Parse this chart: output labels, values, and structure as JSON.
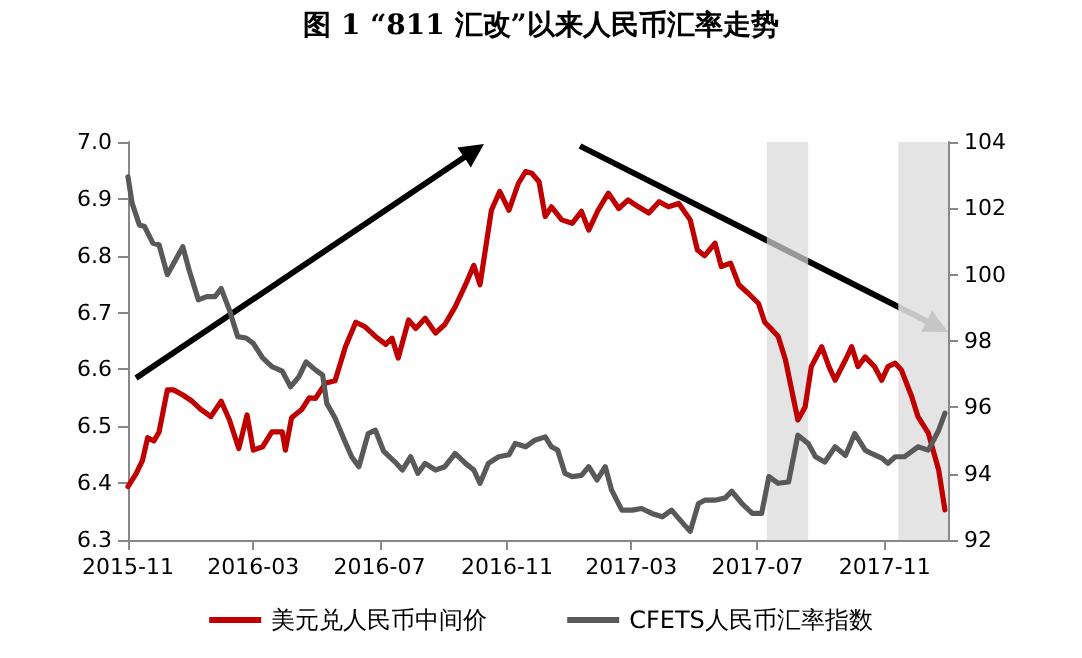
{
  "chart_data": {
    "type": "line",
    "title": "图 1 “811 汇改”以来人民币汇率走势",
    "xlim": [
      "2015-11",
      "2018-01"
    ],
    "xticks": [
      "2015-11",
      "2016-03",
      "2016-07",
      "2016-11",
      "2017-03",
      "2017-07",
      "2017-11"
    ],
    "ylim": [
      6.3,
      7.0
    ],
    "yticks": [
      6.3,
      6.4,
      6.5,
      6.6,
      6.7,
      6.8,
      6.9,
      {
        "value": 7,
        "label": "7.0"
      }
    ],
    "y2lim": [
      92,
      104
    ],
    "y2ticks": [
      92,
      94,
      96,
      98,
      100,
      102,
      104
    ],
    "grid": false,
    "legend": "bottom",
    "marker": "none",
    "line_style": "solid",
    "bands": [
      {
        "axis": "x",
        "from": "2017-07-10",
        "to": "2017-08-19",
        "color": "#d9d9d9"
      },
      {
        "axis": "x",
        "from": "2017-11-14",
        "to": "2018-01-01",
        "color": "#d9d9d9"
      }
    ],
    "series": [
      {
        "name": "美元兑人民币中间价",
        "color": "#c00000",
        "x": [
          "2015-11-01",
          "2015-11-09",
          "2015-11-15",
          "2015-11-20",
          "2015-11-26",
          "2015-12-01",
          "2015-12-09",
          "2015-12-15",
          "2015-12-24",
          "2016-01-02",
          "2016-01-10",
          "2016-01-20",
          "2016-01-30",
          "2016-02-07",
          "2016-02-16",
          "2016-02-24",
          "2016-03-01",
          "2016-03-10",
          "2016-03-19",
          "2016-03-29",
          "2016-04-01",
          "2016-04-07",
          "2016-04-17",
          "2016-04-24",
          "2016-04-30",
          "2016-05-10",
          "2016-05-19",
          "2016-05-29",
          "2016-06-08",
          "2016-06-17",
          "2016-06-27",
          "2016-07-07",
          "2016-07-13",
          "2016-07-19",
          "2016-07-29",
          "2016-08-05",
          "2016-08-14",
          "2016-08-24",
          "2016-09-02",
          "2016-09-12",
          "2016-09-22",
          "2016-09-30",
          "2016-10-06",
          "2016-10-17",
          "2016-10-25",
          "2016-11-03",
          "2016-11-12",
          "2016-11-19",
          "2016-11-25",
          "2016-12-02",
          "2016-12-08",
          "2016-12-14",
          "2016-12-24",
          "2017-01-03",
          "2017-01-12",
          "2017-01-19",
          "2017-01-28",
          "2017-02-07",
          "2017-02-17",
          "2017-02-26",
          "2017-03-08",
          "2017-03-18",
          "2017-03-28",
          "2017-04-06",
          "2017-04-16",
          "2017-04-27",
          "2017-05-04",
          "2017-05-11",
          "2017-05-21",
          "2017-05-27",
          "2017-06-05",
          "2017-06-13",
          "2017-06-22",
          "2017-07-02",
          "2017-07-08",
          "2017-07-15",
          "2017-07-21",
          "2017-07-28",
          "2017-08-03",
          "2017-08-09",
          "2017-08-16",
          "2017-08-22",
          "2017-09-01",
          "2017-09-08",
          "2017-09-14",
          "2017-09-24",
          "2017-09-30",
          "2017-10-06",
          "2017-10-13",
          "2017-10-22",
          "2017-10-29",
          "2017-11-04",
          "2017-11-11",
          "2017-11-17",
          "2017-11-27",
          "2017-12-03",
          "2017-12-13",
          "2017-12-23",
          "2017-12-29"
        ],
        "values": [
          6.394,
          6.417,
          6.44,
          6.48,
          6.474,
          6.49,
          6.564,
          6.564,
          6.555,
          6.544,
          6.53,
          6.517,
          6.544,
          6.511,
          6.461,
          6.52,
          6.458,
          6.464,
          6.49,
          6.49,
          6.458,
          6.515,
          6.53,
          6.55,
          6.549,
          6.576,
          6.58,
          6.64,
          6.683,
          6.675,
          6.658,
          6.644,
          6.655,
          6.62,
          6.687,
          6.672,
          6.69,
          6.664,
          6.679,
          6.71,
          6.749,
          6.783,
          6.749,
          6.88,
          6.913,
          6.88,
          6.927,
          6.948,
          6.945,
          6.93,
          6.869,
          6.886,
          6.863,
          6.857,
          6.878,
          6.845,
          6.88,
          6.91,
          6.883,
          6.898,
          6.886,
          6.875,
          6.895,
          6.886,
          6.892,
          6.863,
          6.81,
          6.8,
          6.822,
          6.781,
          6.787,
          6.749,
          6.734,
          6.716,
          6.683,
          6.67,
          6.658,
          6.617,
          6.564,
          6.511,
          6.534,
          6.605,
          6.64,
          6.605,
          6.581,
          6.617,
          6.64,
          6.605,
          6.622,
          6.605,
          6.581,
          6.605,
          6.611,
          6.599,
          6.552,
          6.517,
          6.488,
          6.423,
          6.353
        ]
      },
      {
        "name": "CFETS人民币汇率指数",
        "color": "#595959",
        "axis": "y2",
        "x": [
          "2015-11-01",
          "2015-11-05",
          "2015-11-12",
          "2015-11-17",
          "2015-11-25",
          "2015-12-01",
          "2015-12-09",
          "2015-12-15",
          "2015-12-24",
          "2015-12-30",
          "2016-01-08",
          "2016-01-16",
          "2016-01-24",
          "2016-01-30",
          "2016-02-07",
          "2016-02-15",
          "2016-02-23",
          "2016-03-01",
          "2016-03-10",
          "2016-03-19",
          "2016-03-29",
          "2016-04-06",
          "2016-04-14",
          "2016-04-21",
          "2016-04-30",
          "2016-05-07",
          "2016-05-11",
          "2016-05-19",
          "2016-05-28",
          "2016-06-04",
          "2016-06-11",
          "2016-06-20",
          "2016-06-27",
          "2016-07-05",
          "2016-07-16",
          "2016-07-23",
          "2016-07-31",
          "2016-08-07",
          "2016-08-14",
          "2016-08-24",
          "2016-09-02",
          "2016-09-12",
          "2016-09-22",
          "2016-09-30",
          "2016-10-06",
          "2016-10-14",
          "2016-10-24",
          "2016-11-03",
          "2016-11-09",
          "2016-11-19",
          "2016-11-28",
          "2016-12-08",
          "2016-12-14",
          "2016-12-20",
          "2016-12-27",
          "2017-01-03",
          "2017-01-12",
          "2017-01-19",
          "2017-01-27",
          "2017-02-04",
          "2017-02-10",
          "2017-02-20",
          "2017-03-02",
          "2017-03-11",
          "2017-03-21",
          "2017-03-31",
          "2017-04-09",
          "2017-04-19",
          "2017-04-27",
          "2017-05-05",
          "2017-05-11",
          "2017-05-21",
          "2017-05-31",
          "2017-06-06",
          "2017-06-16",
          "2017-06-26",
          "2017-07-05",
          "2017-07-12",
          "2017-07-21",
          "2017-07-31",
          "2017-08-09",
          "2017-08-19",
          "2017-08-26",
          "2017-09-04",
          "2017-09-14",
          "2017-09-24",
          "2017-10-03",
          "2017-10-13",
          "2017-10-19",
          "2017-10-29",
          "2017-11-04",
          "2017-11-11",
          "2017-11-20",
          "2017-12-03",
          "2017-12-13",
          "2017-12-23",
          "2017-12-29"
        ],
        "values": [
          102.95,
          102.15,
          101.5,
          101.45,
          100.95,
          100.9,
          100.0,
          100.34,
          100.84,
          100.14,
          99.24,
          99.34,
          99.34,
          99.58,
          98.93,
          98.13,
          98.09,
          97.93,
          97.49,
          97.23,
          97.09,
          96.62,
          96.92,
          97.37,
          97.13,
          96.97,
          96.12,
          95.68,
          95.01,
          94.51,
          94.21,
          95.21,
          95.31,
          94.67,
          94.35,
          94.11,
          94.51,
          94.01,
          94.31,
          94.11,
          94.21,
          94.61,
          94.31,
          94.11,
          93.71,
          94.31,
          94.51,
          94.57,
          94.91,
          94.81,
          95.01,
          95.11,
          94.81,
          94.71,
          94.01,
          93.91,
          93.95,
          94.21,
          93.81,
          94.21,
          93.51,
          92.9,
          92.9,
          92.95,
          92.8,
          92.7,
          92.9,
          92.54,
          92.26,
          93.1,
          93.2,
          93.2,
          93.27,
          93.47,
          93.1,
          92.8,
          92.8,
          93.91,
          93.71,
          93.75,
          95.16,
          94.91,
          94.51,
          94.35,
          94.81,
          94.55,
          95.21,
          94.71,
          94.61,
          94.47,
          94.31,
          94.51,
          94.51,
          94.81,
          94.71,
          95.31,
          95.82
        ]
      }
    ]
  }
}
